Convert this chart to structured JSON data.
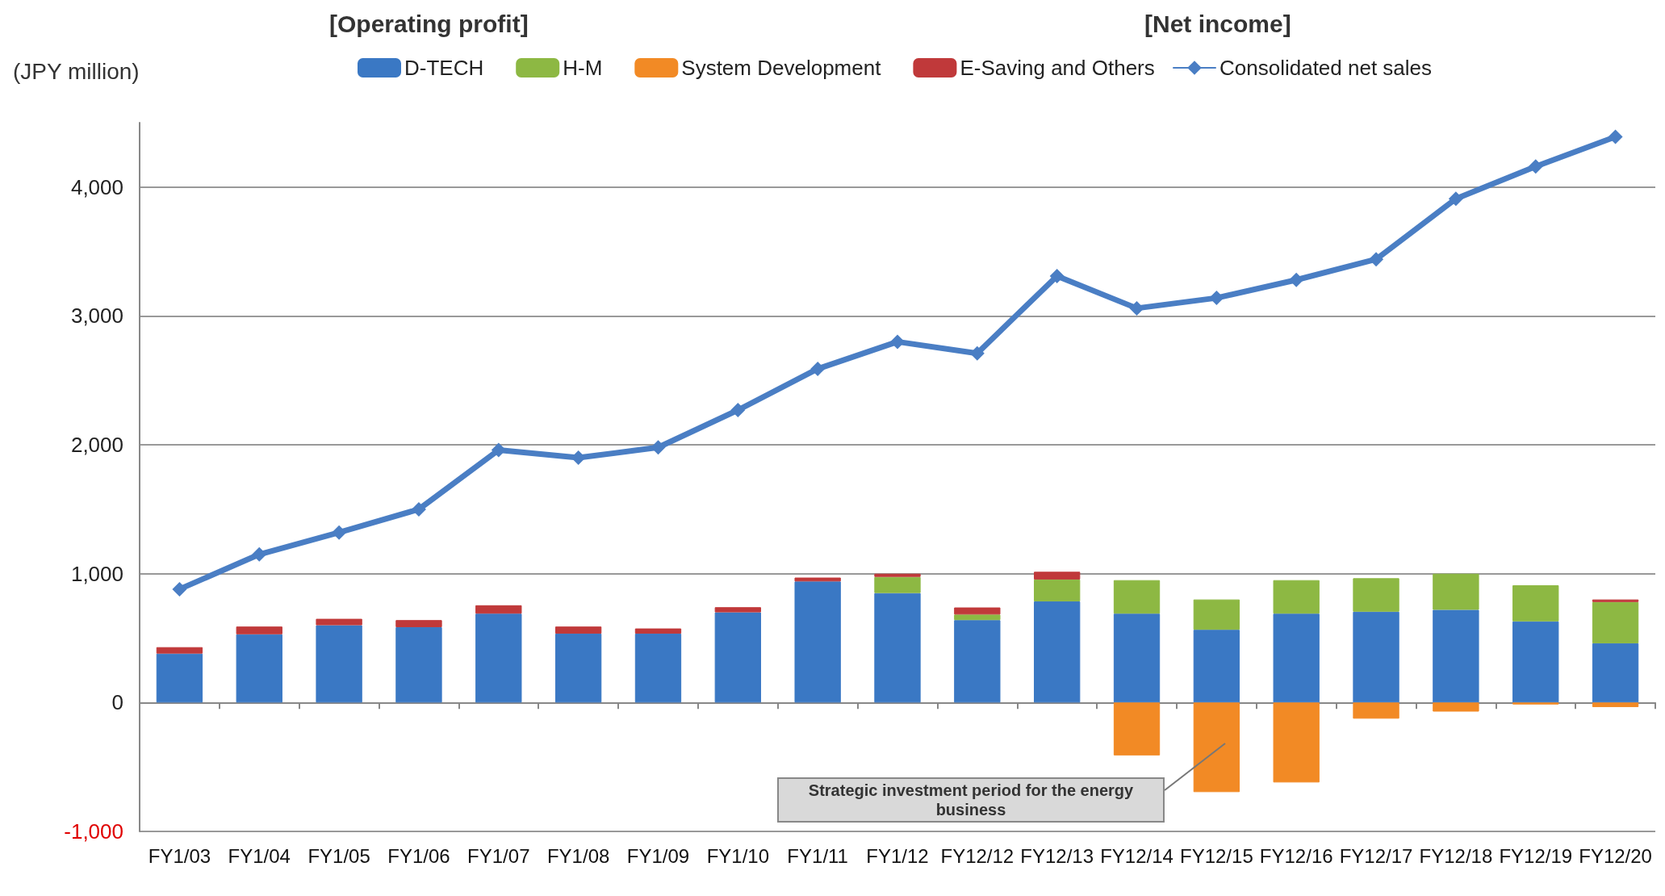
{
  "chart_data": {
    "type": "bar",
    "stacked": true,
    "ylabel": "(JPY million)",
    "annotations": [
      "[Operating profit]",
      "[Net income]",
      "Strategic investment period for the energy business"
    ],
    "categories": [
      "FY1/03",
      "FY1/04",
      "FY1/05",
      "FY1/06",
      "FY1/07",
      "FY1/08",
      "FY1/09",
      "FY1/10",
      "FY1/11",
      "FY1/12",
      "FY12/12",
      "FY12/13",
      "FY12/14",
      "FY12/15",
      "FY12/16",
      "FY12/17",
      "FY12/18",
      "FY12/19",
      "FY12/20"
    ],
    "series": [
      {
        "name": "D-TECH",
        "color": "#3a78c4",
        "values": [
          380,
          530,
          600,
          585,
          690,
          535,
          535,
          700,
          940,
          850,
          640,
          785,
          690,
          565,
          690,
          705,
          720,
          630,
          460
        ]
      },
      {
        "name": "H-M",
        "color": "#8db843",
        "values": [
          null,
          null,
          null,
          null,
          null,
          null,
          null,
          null,
          null,
          125,
          43,
          170,
          260,
          235,
          260,
          260,
          280,
          280,
          320
        ]
      },
      {
        "name": "System Development",
        "color": "#f28a25",
        "values": [
          null,
          null,
          null,
          null,
          null,
          null,
          null,
          null,
          null,
          null,
          null,
          null,
          -410,
          -695,
          -620,
          -125,
          -70,
          -15,
          -35
        ]
      },
      {
        "name": "E-Saving and Others",
        "color": "#c0393a",
        "values": [
          50,
          60,
          50,
          55,
          65,
          55,
          40,
          40,
          30,
          25,
          55,
          60,
          null,
          null,
          null,
          null,
          null,
          null,
          20
        ]
      },
      {
        "name": "Consolidated net sales",
        "type": "line",
        "color": "#4a7ec4",
        "values": [
          880,
          1150,
          1320,
          1500,
          1960,
          1900,
          1980,
          2270,
          2590,
          2800,
          2710,
          3310,
          3060,
          3140,
          3280,
          3440,
          3910,
          4160,
          4390
        ]
      }
    ],
    "ylim": [
      -1000,
      4500
    ],
    "yticks": [
      {
        "value": -1000,
        "label": "-1,000"
      },
      {
        "value": 0,
        "label": "0"
      },
      {
        "value": 1000,
        "label": "1,000"
      },
      {
        "value": 2000,
        "label": "2,000"
      },
      {
        "value": 3000,
        "label": "3,000"
      },
      {
        "value": 4000,
        "label": "4,000"
      }
    ],
    "grid": "y",
    "legend": "top",
    "marker": "diamond",
    "line_style": "solid"
  }
}
